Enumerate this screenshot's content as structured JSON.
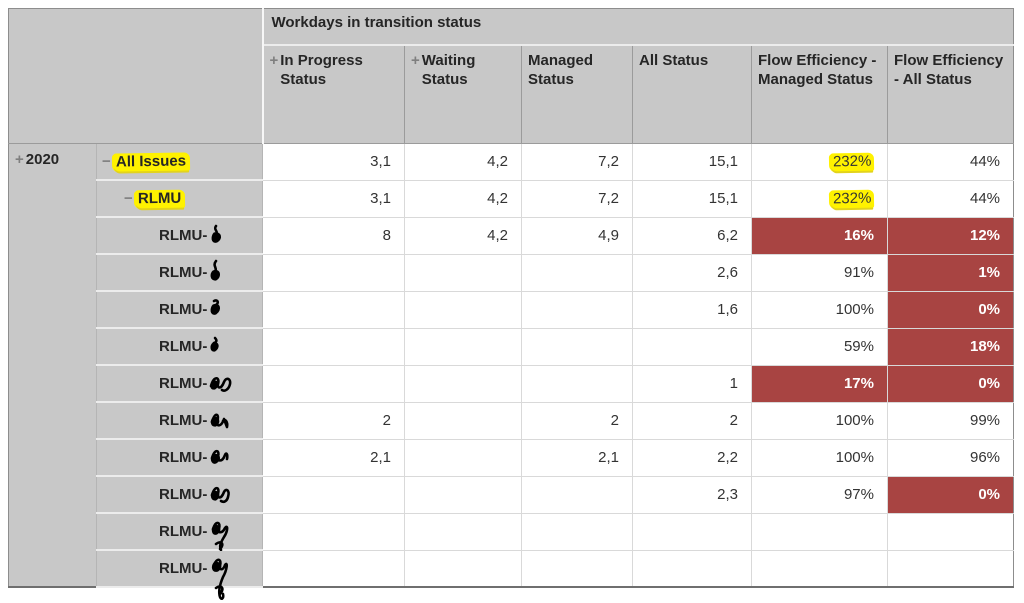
{
  "pivot": {
    "group_header": "Workdays in transition status",
    "year": {
      "label": "2020",
      "expand_icon": "+"
    },
    "columns": [
      {
        "key": "in_progress",
        "label": "In Progress Status",
        "expand_icon": "+"
      },
      {
        "key": "waiting",
        "label": "Waiting Status",
        "expand_icon": "+"
      },
      {
        "key": "managed",
        "label": "Managed Status"
      },
      {
        "key": "all_status",
        "label": "All Status"
      },
      {
        "key": "flow_eff_managed",
        "label": "Flow Efficiency - Managed Status"
      },
      {
        "key": "flow_eff_all",
        "label": "Flow Efficiency - All Status"
      }
    ],
    "rows": [
      {
        "label": "All Issues",
        "collapse_icon": "−",
        "indent": 1,
        "highlighted": true,
        "scribbled": false,
        "cells": [
          {
            "v": "3,1"
          },
          {
            "v": "4,2"
          },
          {
            "v": "7,2"
          },
          {
            "v": "15,1"
          },
          {
            "v": "232%",
            "mark": true
          },
          {
            "v": "44%"
          }
        ]
      },
      {
        "label": "RLMU",
        "collapse_icon": "−",
        "indent": 2,
        "highlighted": true,
        "scribbled": false,
        "cells": [
          {
            "v": "3,1"
          },
          {
            "v": "4,2"
          },
          {
            "v": "7,2"
          },
          {
            "v": "15,1"
          },
          {
            "v": "232%",
            "mark": true
          },
          {
            "v": "44%"
          }
        ]
      },
      {
        "label": "RLMU-",
        "indent": 3,
        "scribbled": true,
        "cells": [
          {
            "v": "8"
          },
          {
            "v": "4,2"
          },
          {
            "v": "4,9"
          },
          {
            "v": "6,2"
          },
          {
            "v": "16%",
            "red": true
          },
          {
            "v": "12%",
            "red": true
          }
        ]
      },
      {
        "label": "RLMU-",
        "indent": 3,
        "scribbled": true,
        "cells": [
          {
            "v": ""
          },
          {
            "v": ""
          },
          {
            "v": ""
          },
          {
            "v": "2,6"
          },
          {
            "v": "91%"
          },
          {
            "v": "1%",
            "red": true
          }
        ]
      },
      {
        "label": "RLMU-",
        "indent": 3,
        "scribbled": true,
        "cells": [
          {
            "v": ""
          },
          {
            "v": ""
          },
          {
            "v": ""
          },
          {
            "v": "1,6"
          },
          {
            "v": "100%"
          },
          {
            "v": "0%",
            "red": true
          }
        ]
      },
      {
        "label": "RLMU-",
        "indent": 3,
        "scribbled": true,
        "cells": [
          {
            "v": ""
          },
          {
            "v": ""
          },
          {
            "v": ""
          },
          {
            "v": ""
          },
          {
            "v": "59%"
          },
          {
            "v": "18%",
            "red": true
          }
        ]
      },
      {
        "label": "RLMU-",
        "indent": 3,
        "scribbled": true,
        "cells": [
          {
            "v": ""
          },
          {
            "v": ""
          },
          {
            "v": ""
          },
          {
            "v": "1"
          },
          {
            "v": "17%",
            "red": true
          },
          {
            "v": "0%",
            "red": true
          }
        ]
      },
      {
        "label": "RLMU-",
        "indent": 3,
        "scribbled": true,
        "cells": [
          {
            "v": "2"
          },
          {
            "v": ""
          },
          {
            "v": "2"
          },
          {
            "v": "2"
          },
          {
            "v": "100%"
          },
          {
            "v": "99%"
          }
        ]
      },
      {
        "label": "RLMU-",
        "indent": 3,
        "scribbled": true,
        "cells": [
          {
            "v": "2,1"
          },
          {
            "v": ""
          },
          {
            "v": "2,1"
          },
          {
            "v": "2,2"
          },
          {
            "v": "100%"
          },
          {
            "v": "96%"
          }
        ]
      },
      {
        "label": "RLMU-",
        "indent": 3,
        "scribbled": true,
        "cells": [
          {
            "v": ""
          },
          {
            "v": ""
          },
          {
            "v": ""
          },
          {
            "v": "2,3"
          },
          {
            "v": "97%"
          },
          {
            "v": "0%",
            "red": true
          }
        ]
      },
      {
        "label": "RLMU-",
        "indent": 3,
        "scribbled": true,
        "cells": [
          {
            "v": ""
          },
          {
            "v": ""
          },
          {
            "v": ""
          },
          {
            "v": ""
          },
          {
            "v": ""
          },
          {
            "v": ""
          }
        ]
      },
      {
        "label": "RLMU-",
        "indent": 3,
        "scribbled": true,
        "cells": [
          {
            "v": ""
          },
          {
            "v": ""
          },
          {
            "v": ""
          },
          {
            "v": ""
          },
          {
            "v": ""
          },
          {
            "v": ""
          }
        ]
      }
    ],
    "colors": {
      "header_bg": "#c8c8c8",
      "red_bg": "#a84442",
      "red_text": "#ffffff",
      "highlight": "#fff200",
      "icon_gray": "#7f7f7f"
    }
  }
}
